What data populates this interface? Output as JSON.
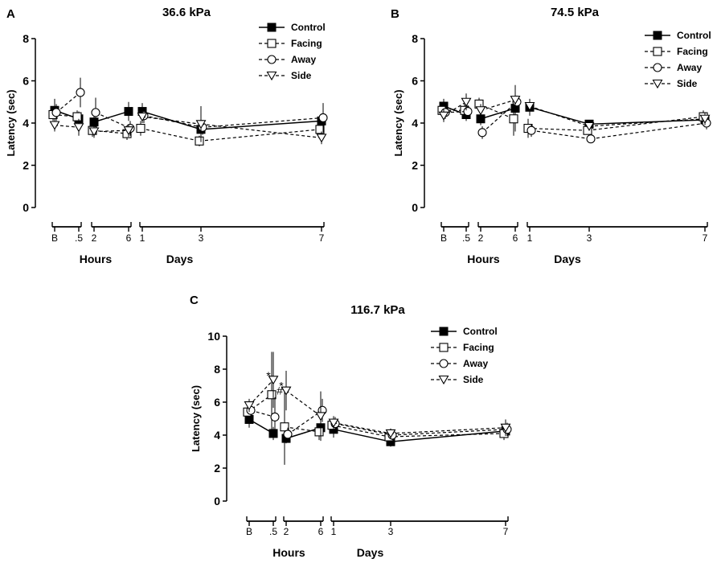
{
  "chart_data": [
    {
      "type": "line",
      "panel_label": "A",
      "title": "36.6 kPa",
      "xlabel": "",
      "ylabel": "Latency (sec)",
      "ylim": [
        0,
        8
      ],
      "yticks": [
        0,
        2,
        4,
        6,
        8
      ],
      "xticks": [
        "B",
        ".5",
        "2",
        "6",
        "1",
        "3",
        "7"
      ],
      "group_labels": [
        "Hours",
        "Days"
      ],
      "series": [
        {
          "name": "Control",
          "marker": "square-filled",
          "dash": false,
          "values": [
            4.6,
            4.2,
            4.05,
            4.55,
            4.55,
            3.7,
            4.1
          ],
          "errors": [
            0.55,
            0.35,
            0.45,
            0.45,
            0.4,
            0.5,
            0.35
          ]
        },
        {
          "name": "Facing",
          "marker": "square-open",
          "dash": true,
          "values": [
            4.4,
            4.3,
            3.65,
            3.5,
            3.75,
            3.15,
            3.7
          ],
          "errors": [
            0.3,
            0.3,
            0.3,
            0.3,
            0.35,
            0.25,
            0.4
          ]
        },
        {
          "name": "Away",
          "marker": "circle-open",
          "dash": true,
          "values": [
            4.5,
            5.45,
            4.5,
            3.75,
            4.35,
            3.8,
            4.25
          ],
          "errors": [
            0.4,
            0.7,
            0.7,
            0.35,
            0.35,
            0.35,
            0.7
          ]
        },
        {
          "name": "Side",
          "marker": "triangle-open",
          "dash": true,
          "values": [
            3.9,
            3.8,
            3.6,
            3.65,
            4.3,
            3.95,
            3.3
          ],
          "errors": [
            0.3,
            0.4,
            0.3,
            0.3,
            0.3,
            0.85,
            0.3
          ]
        }
      ]
    },
    {
      "type": "line",
      "panel_label": "B",
      "title": "74.5 kPa",
      "xlabel": "",
      "ylabel": "Latency (sec)",
      "ylim": [
        0,
        8
      ],
      "yticks": [
        0,
        2,
        4,
        6,
        8
      ],
      "xticks": [
        "B",
        ".5",
        "2",
        "6",
        "1",
        "3",
        "7"
      ],
      "group_labels": [
        "Hours",
        "Days"
      ],
      "series": [
        {
          "name": "Control",
          "marker": "square-filled",
          "dash": false,
          "values": [
            4.8,
            4.4,
            4.2,
            4.7,
            4.75,
            3.95,
            4.15
          ],
          "errors": [
            0.35,
            0.3,
            0.3,
            1.1,
            0.4,
            0.2,
            0.35
          ]
        },
        {
          "name": "Facing",
          "marker": "square-open",
          "dash": true,
          "values": [
            4.6,
            4.6,
            4.9,
            4.2,
            3.75,
            3.65,
            4.3
          ],
          "errors": [
            0.3,
            0.3,
            0.3,
            0.8,
            0.45,
            0.2,
            0.3
          ]
        },
        {
          "name": "Away",
          "marker": "circle-open",
          "dash": true,
          "values": [
            4.5,
            4.55,
            3.55,
            5.0,
            3.65,
            3.25,
            4.0
          ],
          "errors": [
            0.3,
            0.3,
            0.3,
            0.3,
            0.3,
            0.2,
            0.3
          ]
        },
        {
          "name": "Side",
          "marker": "triangle-open",
          "dash": true,
          "values": [
            4.35,
            5.0,
            4.6,
            5.1,
            4.8,
            3.85,
            4.2
          ],
          "errors": [
            0.3,
            0.4,
            0.3,
            0.3,
            0.3,
            0.2,
            0.3
          ]
        }
      ]
    },
    {
      "type": "line",
      "panel_label": "C",
      "title": "116.7 kPa",
      "xlabel": "",
      "ylabel": "Latency (sec)",
      "ylim": [
        0,
        10
      ],
      "yticks": [
        0,
        2,
        4,
        6,
        8,
        10
      ],
      "xticks": [
        "B",
        ".5",
        "2",
        "6",
        "1",
        "3",
        "7"
      ],
      "group_labels": [
        "Hours",
        "Days"
      ],
      "annotations": [
        {
          "text": "*",
          "x_index": 1,
          "y": 7.6
        },
        {
          "text": "#",
          "x_index": 1,
          "y": 6.7
        },
        {
          "text": "*",
          "x_index": 2,
          "y": 7.0
        }
      ],
      "series": [
        {
          "name": "Control",
          "marker": "square-filled",
          "dash": false,
          "values": [
            4.95,
            4.1,
            3.8,
            4.45,
            4.35,
            3.6,
            4.25
          ],
          "errors": [
            0.5,
            0.4,
            0.3,
            0.5,
            0.5,
            0.3,
            0.4
          ]
        },
        {
          "name": "Facing",
          "marker": "square-open",
          "dash": true,
          "values": [
            5.4,
            6.45,
            4.5,
            4.2,
            4.6,
            3.9,
            4.1
          ],
          "errors": [
            0.4,
            2.6,
            2.3,
            0.5,
            0.4,
            0.3,
            0.4
          ]
        },
        {
          "name": "Away",
          "marker": "circle-open",
          "dash": true,
          "values": [
            5.5,
            5.1,
            4.05,
            5.5,
            4.7,
            4.0,
            4.35
          ],
          "errors": [
            0.4,
            1.2,
            0.4,
            0.7,
            0.4,
            0.3,
            0.4
          ]
        },
        {
          "name": "Side",
          "marker": "triangle-open",
          "dash": true,
          "values": [
            5.8,
            7.35,
            6.7,
            5.15,
            4.75,
            4.1,
            4.45
          ],
          "errors": [
            0.4,
            1.7,
            1.2,
            1.5,
            0.4,
            0.3,
            0.5
          ]
        }
      ]
    }
  ]
}
